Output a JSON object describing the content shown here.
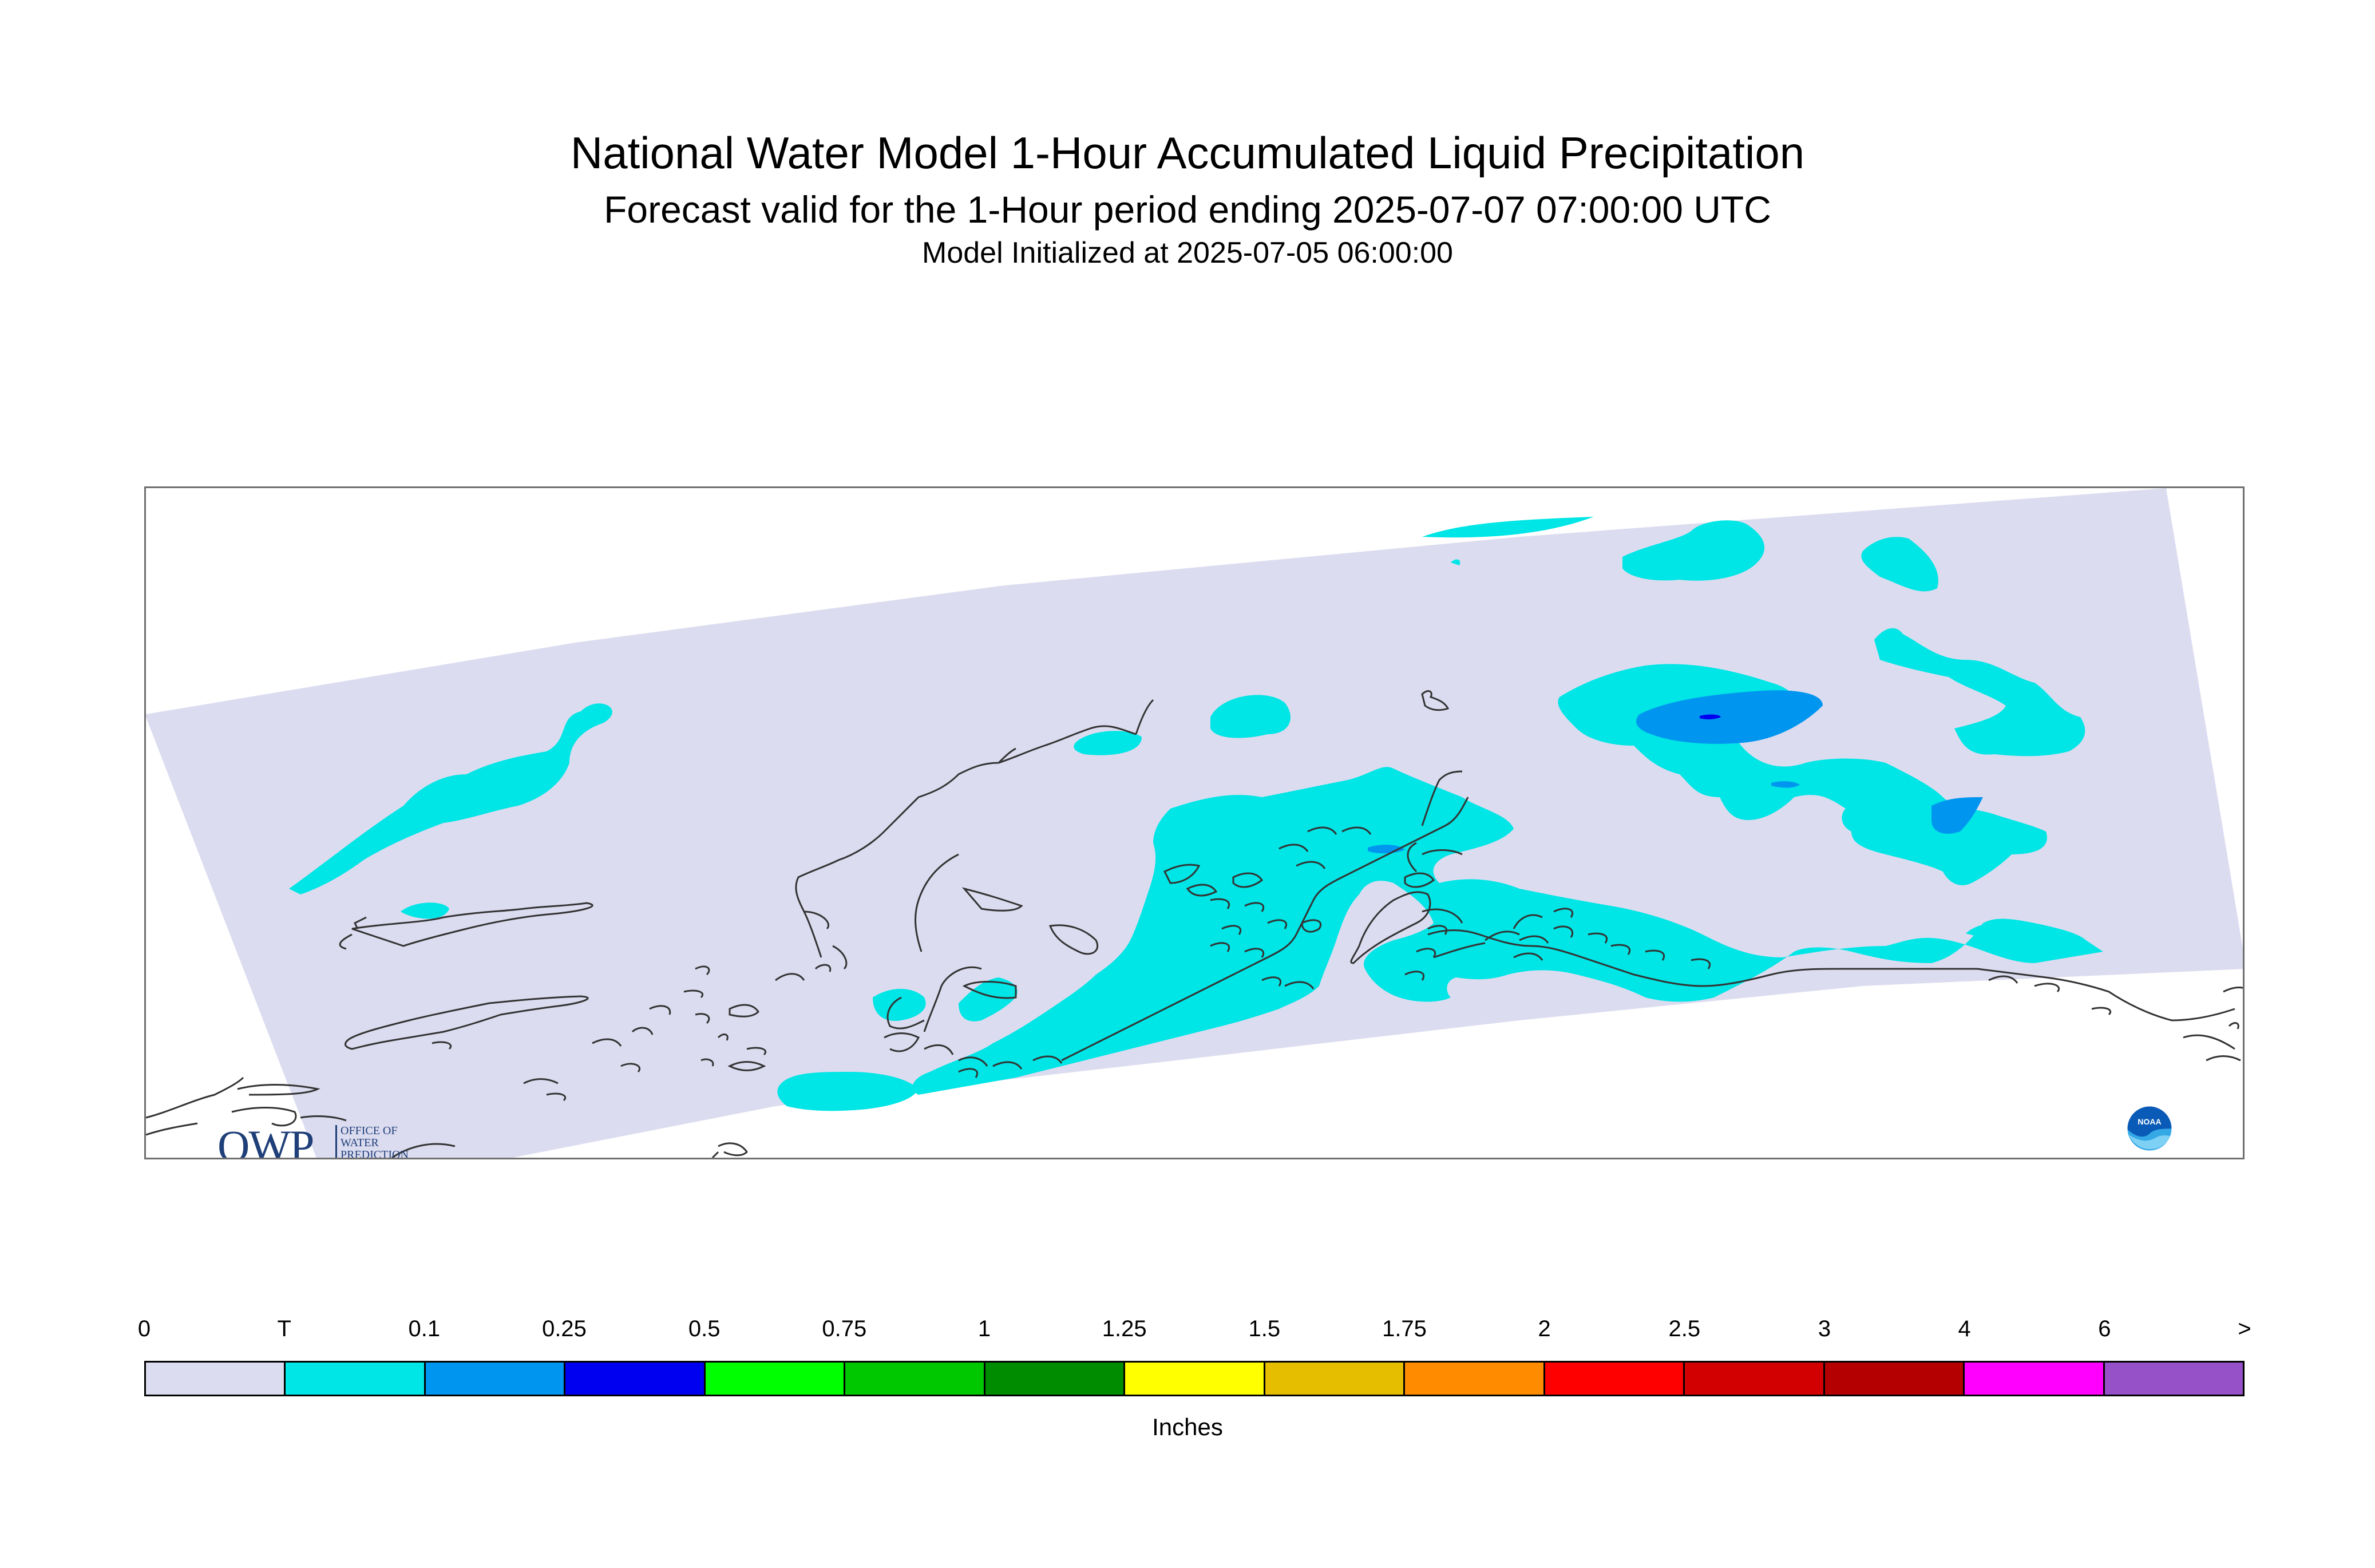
{
  "header": {
    "title": "National Water Model 1-Hour Accumulated Liquid Precipitation",
    "subtitle": "Forecast valid for the 1-Hour period ending 2025-07-07 07:00:00 UTC",
    "init": "Model Initialized at 2025-07-05 06:00:00"
  },
  "logos": {
    "owp_big": "OWP",
    "owp_line1": "OFFICE OF",
    "owp_line2": "WATER",
    "owp_line3": "PREDICTION",
    "noaa_text": "NOAA"
  },
  "legend": {
    "units": "Inches",
    "labels": [
      "0",
      "T",
      "0.1",
      "0.25",
      "0.5",
      "0.75",
      "1",
      "1.25",
      "1.5",
      "1.75",
      "2",
      "2.5",
      "3",
      "4",
      "6",
      ">"
    ],
    "colors": [
      "#dcdcf0",
      "#00e5e5",
      "#0096f0",
      "#0000f0",
      "#00ff00",
      "#00c800",
      "#008c00",
      "#ffff00",
      "#e6be00",
      "#ff8c00",
      "#ff0000",
      "#d20000",
      "#b40000",
      "#ff00ff",
      "#9650c8"
    ]
  },
  "map_colors": {
    "domain": "#dcdcf0",
    "trace": "#00e5e5",
    "light_blue": "#0096f0",
    "blue": "#0000f0",
    "coast": "#333333"
  }
}
